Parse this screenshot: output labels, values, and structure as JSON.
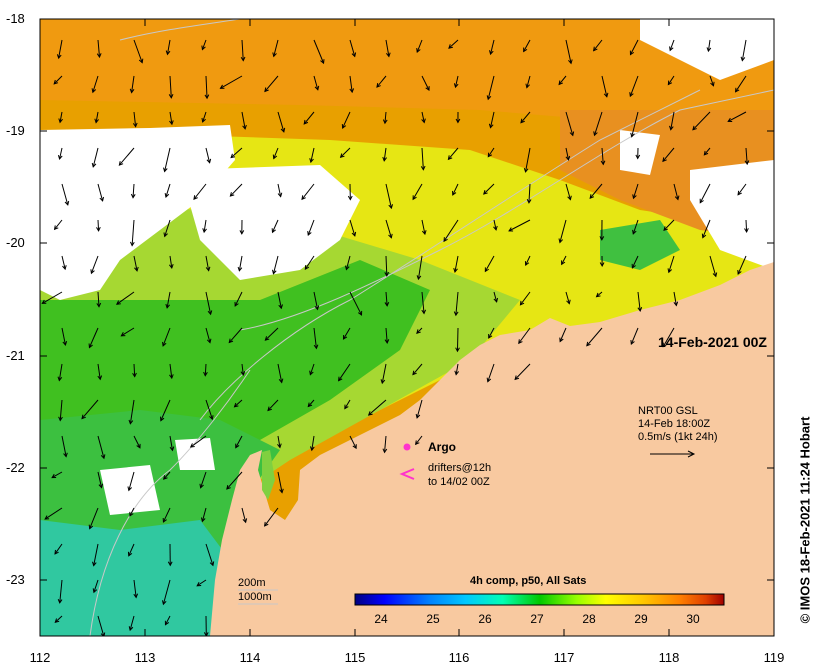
{
  "map": {
    "date_title": "14-Feb-2021 00Z",
    "lat_ticks": [
      "-18",
      "-19",
      "-20",
      "-21",
      "-22",
      "-23"
    ],
    "lon_ticks": [
      "112",
      "113",
      "114",
      "115",
      "116",
      "117",
      "118",
      "119"
    ],
    "lat_range": [
      -23.5,
      -18
    ],
    "lon_range": [
      112,
      119
    ],
    "land_color": "#f8c9a0",
    "cloud_color": "#ffffff"
  },
  "legend": {
    "argo_label": "Argo",
    "argo_color": "#ff33cc",
    "drifter_symbol": "<",
    "drifter_line1": "drifters@12h",
    "drifter_line2": "to 14/02 00Z",
    "current_line1": "NRT00 GSL",
    "current_line2": "14-Feb 18:00Z",
    "current_line3": "0.5m/s (1kt 24h)",
    "bathy_200": "200m",
    "bathy_1000": "1000m"
  },
  "colorbar": {
    "title": "4h comp, p50, All Sats",
    "ticks": [
      "24",
      "25",
      "26",
      "27",
      "28",
      "29",
      "30"
    ],
    "range": [
      23.5,
      30.6
    ],
    "colors": [
      "#000080",
      "#0000ff",
      "#0080ff",
      "#00c8ff",
      "#00ffb4",
      "#00c800",
      "#96ff00",
      "#ffff00",
      "#ffc800",
      "#ff8000",
      "#e04000",
      "#a00000"
    ]
  },
  "credit": "© IMOS 18-Feb-2021 11:24 Hobart"
}
